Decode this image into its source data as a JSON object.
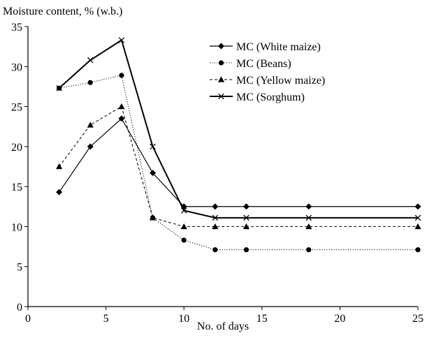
{
  "chart_data": {
    "type": "line",
    "ylabel": "Moisture content, % (w.b.)",
    "xlabel": "No. of days",
    "xlim": [
      0,
      25
    ],
    "ylim": [
      0,
      35
    ],
    "xticks": [
      0,
      5,
      10,
      15,
      20,
      25
    ],
    "yticks": [
      0,
      5,
      10,
      15,
      20,
      25,
      30,
      35
    ],
    "grid": false,
    "legend_position": "top-right",
    "series": [
      {
        "name": "MC (White maize)",
        "marker": "diamond",
        "line_style": "solid",
        "points": [
          {
            "x": 2,
            "y": 14.3
          },
          {
            "x": 4,
            "y": 20.0
          },
          {
            "x": 6,
            "y": 23.5
          },
          {
            "x": 8,
            "y": 16.7
          },
          {
            "x": 10,
            "y": 12.5
          },
          {
            "x": 12,
            "y": 12.5
          },
          {
            "x": 14,
            "y": 12.5
          },
          {
            "x": 18,
            "y": 12.5
          },
          {
            "x": 25,
            "y": 12.5
          }
        ]
      },
      {
        "name": "MC (Beans)",
        "marker": "circle",
        "line_style": "dotted",
        "points": [
          {
            "x": 2,
            "y": 27.3
          },
          {
            "x": 4,
            "y": 28.0
          },
          {
            "x": 6,
            "y": 28.9
          },
          {
            "x": 8,
            "y": 11.1
          },
          {
            "x": 10,
            "y": 8.3
          },
          {
            "x": 12,
            "y": 7.1
          },
          {
            "x": 14,
            "y": 7.1
          },
          {
            "x": 18,
            "y": 7.1
          },
          {
            "x": 25,
            "y": 7.1
          }
        ]
      },
      {
        "name": "MC (Yellow maize)",
        "marker": "triangle",
        "line_style": "dashed",
        "points": [
          {
            "x": 2,
            "y": 17.5
          },
          {
            "x": 4,
            "y": 22.7
          },
          {
            "x": 6,
            "y": 25.0
          },
          {
            "x": 8,
            "y": 11.1
          },
          {
            "x": 10,
            "y": 10.0
          },
          {
            "x": 12,
            "y": 10.0
          },
          {
            "x": 14,
            "y": 10.0
          },
          {
            "x": 18,
            "y": 10.0
          },
          {
            "x": 25,
            "y": 10.0
          }
        ]
      },
      {
        "name": "MC (Sorghum)",
        "marker": "cross",
        "line_style": "solid-thick",
        "points": [
          {
            "x": 2,
            "y": 27.3
          },
          {
            "x": 4,
            "y": 30.8
          },
          {
            "x": 6,
            "y": 33.3
          },
          {
            "x": 8,
            "y": 20.0
          },
          {
            "x": 10,
            "y": 12.0
          },
          {
            "x": 12,
            "y": 11.1
          },
          {
            "x": 14,
            "y": 11.1
          },
          {
            "x": 18,
            "y": 11.1
          },
          {
            "x": 25,
            "y": 11.1
          }
        ]
      }
    ],
    "colors": {
      "line": "#000000",
      "background": "#ffffff"
    }
  }
}
